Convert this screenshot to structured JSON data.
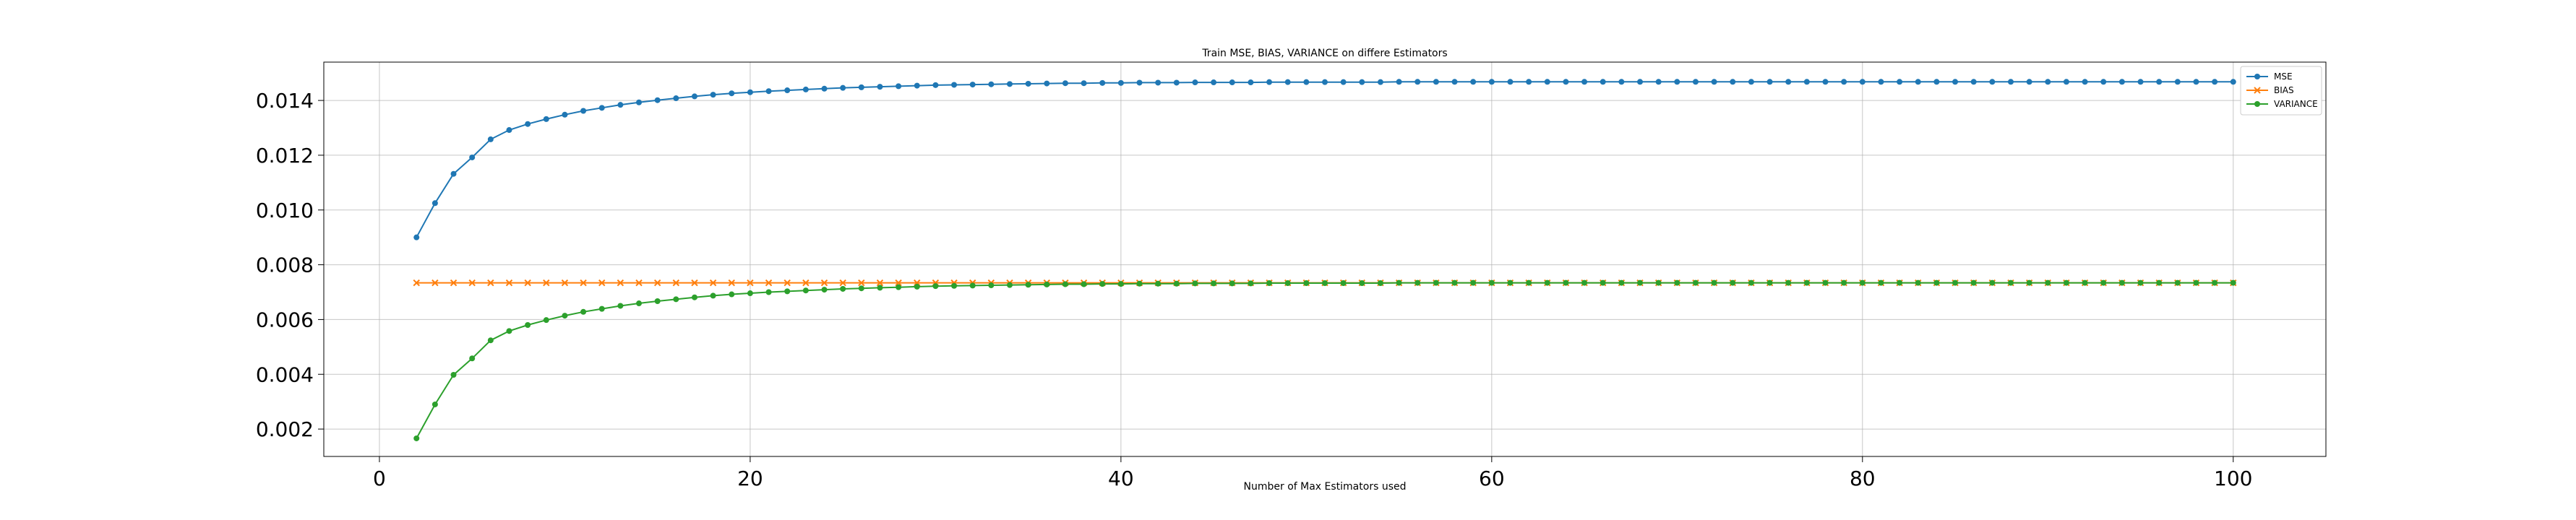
{
  "chart_data": {
    "type": "line",
    "title": "Train MSE, BIAS, VARIANCE on differe Estimators",
    "xlabel": "Number of Max Estimators used",
    "ylabel": "",
    "xlim": [
      -3,
      105
    ],
    "ylim": [
      0.001,
      0.0154
    ],
    "xticks": [
      0,
      20,
      40,
      60,
      80,
      100
    ],
    "yticks": [
      0.002,
      0.004,
      0.006,
      0.008,
      0.01,
      0.012,
      0.014
    ],
    "xtick_labels": [
      "0",
      "20",
      "40",
      "60",
      "80",
      "100"
    ],
    "ytick_labels": [
      "0.002",
      "0.004",
      "0.006",
      "0.008",
      "0.010",
      "0.012",
      "0.014"
    ],
    "grid": true,
    "legend_position": "top-right",
    "x": [
      2,
      3,
      4,
      5,
      6,
      7,
      8,
      9,
      10,
      11,
      12,
      13,
      14,
      15,
      16,
      17,
      18,
      19,
      20,
      21,
      22,
      23,
      24,
      25,
      26,
      27,
      28,
      29,
      30,
      31,
      32,
      33,
      34,
      35,
      36,
      37,
      38,
      39,
      40,
      41,
      42,
      43,
      44,
      45,
      46,
      47,
      48,
      49,
      50,
      51,
      52,
      53,
      54,
      55,
      56,
      57,
      58,
      59,
      60,
      61,
      62,
      63,
      64,
      65,
      66,
      67,
      68,
      69,
      70,
      71,
      72,
      73,
      74,
      75,
      76,
      77,
      78,
      79,
      80,
      81,
      82,
      83,
      84,
      85,
      86,
      87,
      88,
      89,
      90,
      91,
      92,
      93,
      94,
      95,
      96,
      97,
      98,
      99,
      100
    ],
    "series": [
      {
        "name": "MSE",
        "color": "#1f77b4",
        "marker": "circle",
        "values": [
          0.009,
          0.01025,
          0.01132,
          0.01192,
          0.01258,
          0.01292,
          0.01314,
          0.01332,
          0.01348,
          0.01362,
          0.01373,
          0.01384,
          0.01393,
          0.01401,
          0.01408,
          0.01415,
          0.01421,
          0.01426,
          0.0143,
          0.01434,
          0.01437,
          0.0144,
          0.01443,
          0.01446,
          0.01448,
          0.0145,
          0.01452,
          0.01454,
          0.01456,
          0.01457,
          0.01458,
          0.01459,
          0.0146,
          0.01461,
          0.01462,
          0.01463,
          0.01463,
          0.01464,
          0.01464,
          0.01465,
          0.01465,
          0.01465,
          0.01466,
          0.01466,
          0.01466,
          0.01466,
          0.01467,
          0.01467,
          0.01467,
          0.01467,
          0.01467,
          0.01467,
          0.01467,
          0.01468,
          0.01468,
          0.01468,
          0.01468,
          0.01468,
          0.01468,
          0.01468,
          0.01468,
          0.01468,
          0.01468,
          0.01468,
          0.01468,
          0.01468,
          0.01468,
          0.01468,
          0.01468,
          0.01468,
          0.01468,
          0.01468,
          0.01468,
          0.01468,
          0.01468,
          0.01468,
          0.01468,
          0.01468,
          0.01468,
          0.01468,
          0.01468,
          0.01468,
          0.01468,
          0.01468,
          0.01468,
          0.01468,
          0.01468,
          0.01468,
          0.01468,
          0.01468,
          0.01468,
          0.01468,
          0.01468,
          0.01468,
          0.01468,
          0.01468,
          0.01468,
          0.01468,
          0.01468
        ]
      },
      {
        "name": "BIAS",
        "color": "#ff7f0e",
        "marker": "x",
        "values": [
          0.00734,
          0.00734,
          0.00734,
          0.00734,
          0.00734,
          0.00734,
          0.00734,
          0.00734,
          0.00734,
          0.00734,
          0.00734,
          0.00734,
          0.00734,
          0.00734,
          0.00734,
          0.00734,
          0.00734,
          0.00734,
          0.00734,
          0.00734,
          0.00734,
          0.00734,
          0.00734,
          0.00734,
          0.00734,
          0.00734,
          0.00734,
          0.00734,
          0.00734,
          0.00734,
          0.00734,
          0.00734,
          0.00734,
          0.00734,
          0.00734,
          0.00734,
          0.00734,
          0.00734,
          0.00734,
          0.00734,
          0.00734,
          0.00734,
          0.00734,
          0.00734,
          0.00734,
          0.00734,
          0.00734,
          0.00734,
          0.00734,
          0.00734,
          0.00734,
          0.00734,
          0.00734,
          0.00734,
          0.00734,
          0.00734,
          0.00734,
          0.00734,
          0.00734,
          0.00734,
          0.00734,
          0.00734,
          0.00734,
          0.00734,
          0.00734,
          0.00734,
          0.00734,
          0.00734,
          0.00734,
          0.00734,
          0.00734,
          0.00734,
          0.00734,
          0.00734,
          0.00734,
          0.00734,
          0.00734,
          0.00734,
          0.00734,
          0.00734,
          0.00734,
          0.00734,
          0.00734,
          0.00734,
          0.00734,
          0.00734,
          0.00734,
          0.00734,
          0.00734,
          0.00734,
          0.00734,
          0.00734,
          0.00734,
          0.00734,
          0.00734,
          0.00734,
          0.00734,
          0.00734,
          0.00734
        ]
      },
      {
        "name": "VARIANCE",
        "color": "#2ca02c",
        "marker": "circle",
        "values": [
          0.00166,
          0.0029,
          0.00398,
          0.00458,
          0.00524,
          0.00558,
          0.0058,
          0.00598,
          0.00614,
          0.00628,
          0.00639,
          0.0065,
          0.00659,
          0.00667,
          0.00674,
          0.00681,
          0.00687,
          0.00692,
          0.00696,
          0.007,
          0.00703,
          0.00706,
          0.00709,
          0.00712,
          0.00714,
          0.00716,
          0.00718,
          0.0072,
          0.00722,
          0.00723,
          0.00724,
          0.00725,
          0.00726,
          0.00727,
          0.00728,
          0.00729,
          0.00729,
          0.0073,
          0.0073,
          0.00731,
          0.00731,
          0.00731,
          0.00732,
          0.00732,
          0.00732,
          0.00732,
          0.00733,
          0.00733,
          0.00733,
          0.00733,
          0.00733,
          0.00733,
          0.00733,
          0.00734,
          0.00734,
          0.00734,
          0.00734,
          0.00734,
          0.00734,
          0.00734,
          0.00734,
          0.00734,
          0.00734,
          0.00734,
          0.00734,
          0.00734,
          0.00734,
          0.00734,
          0.00734,
          0.00734,
          0.00734,
          0.00734,
          0.00734,
          0.00734,
          0.00734,
          0.00734,
          0.00734,
          0.00734,
          0.00734,
          0.00734,
          0.00734,
          0.00734,
          0.00734,
          0.00734,
          0.00734,
          0.00734,
          0.00734,
          0.00734,
          0.00734,
          0.00734,
          0.00734,
          0.00734,
          0.00734,
          0.00734,
          0.00734,
          0.00734,
          0.00734,
          0.00734,
          0.00734
        ]
      }
    ]
  }
}
